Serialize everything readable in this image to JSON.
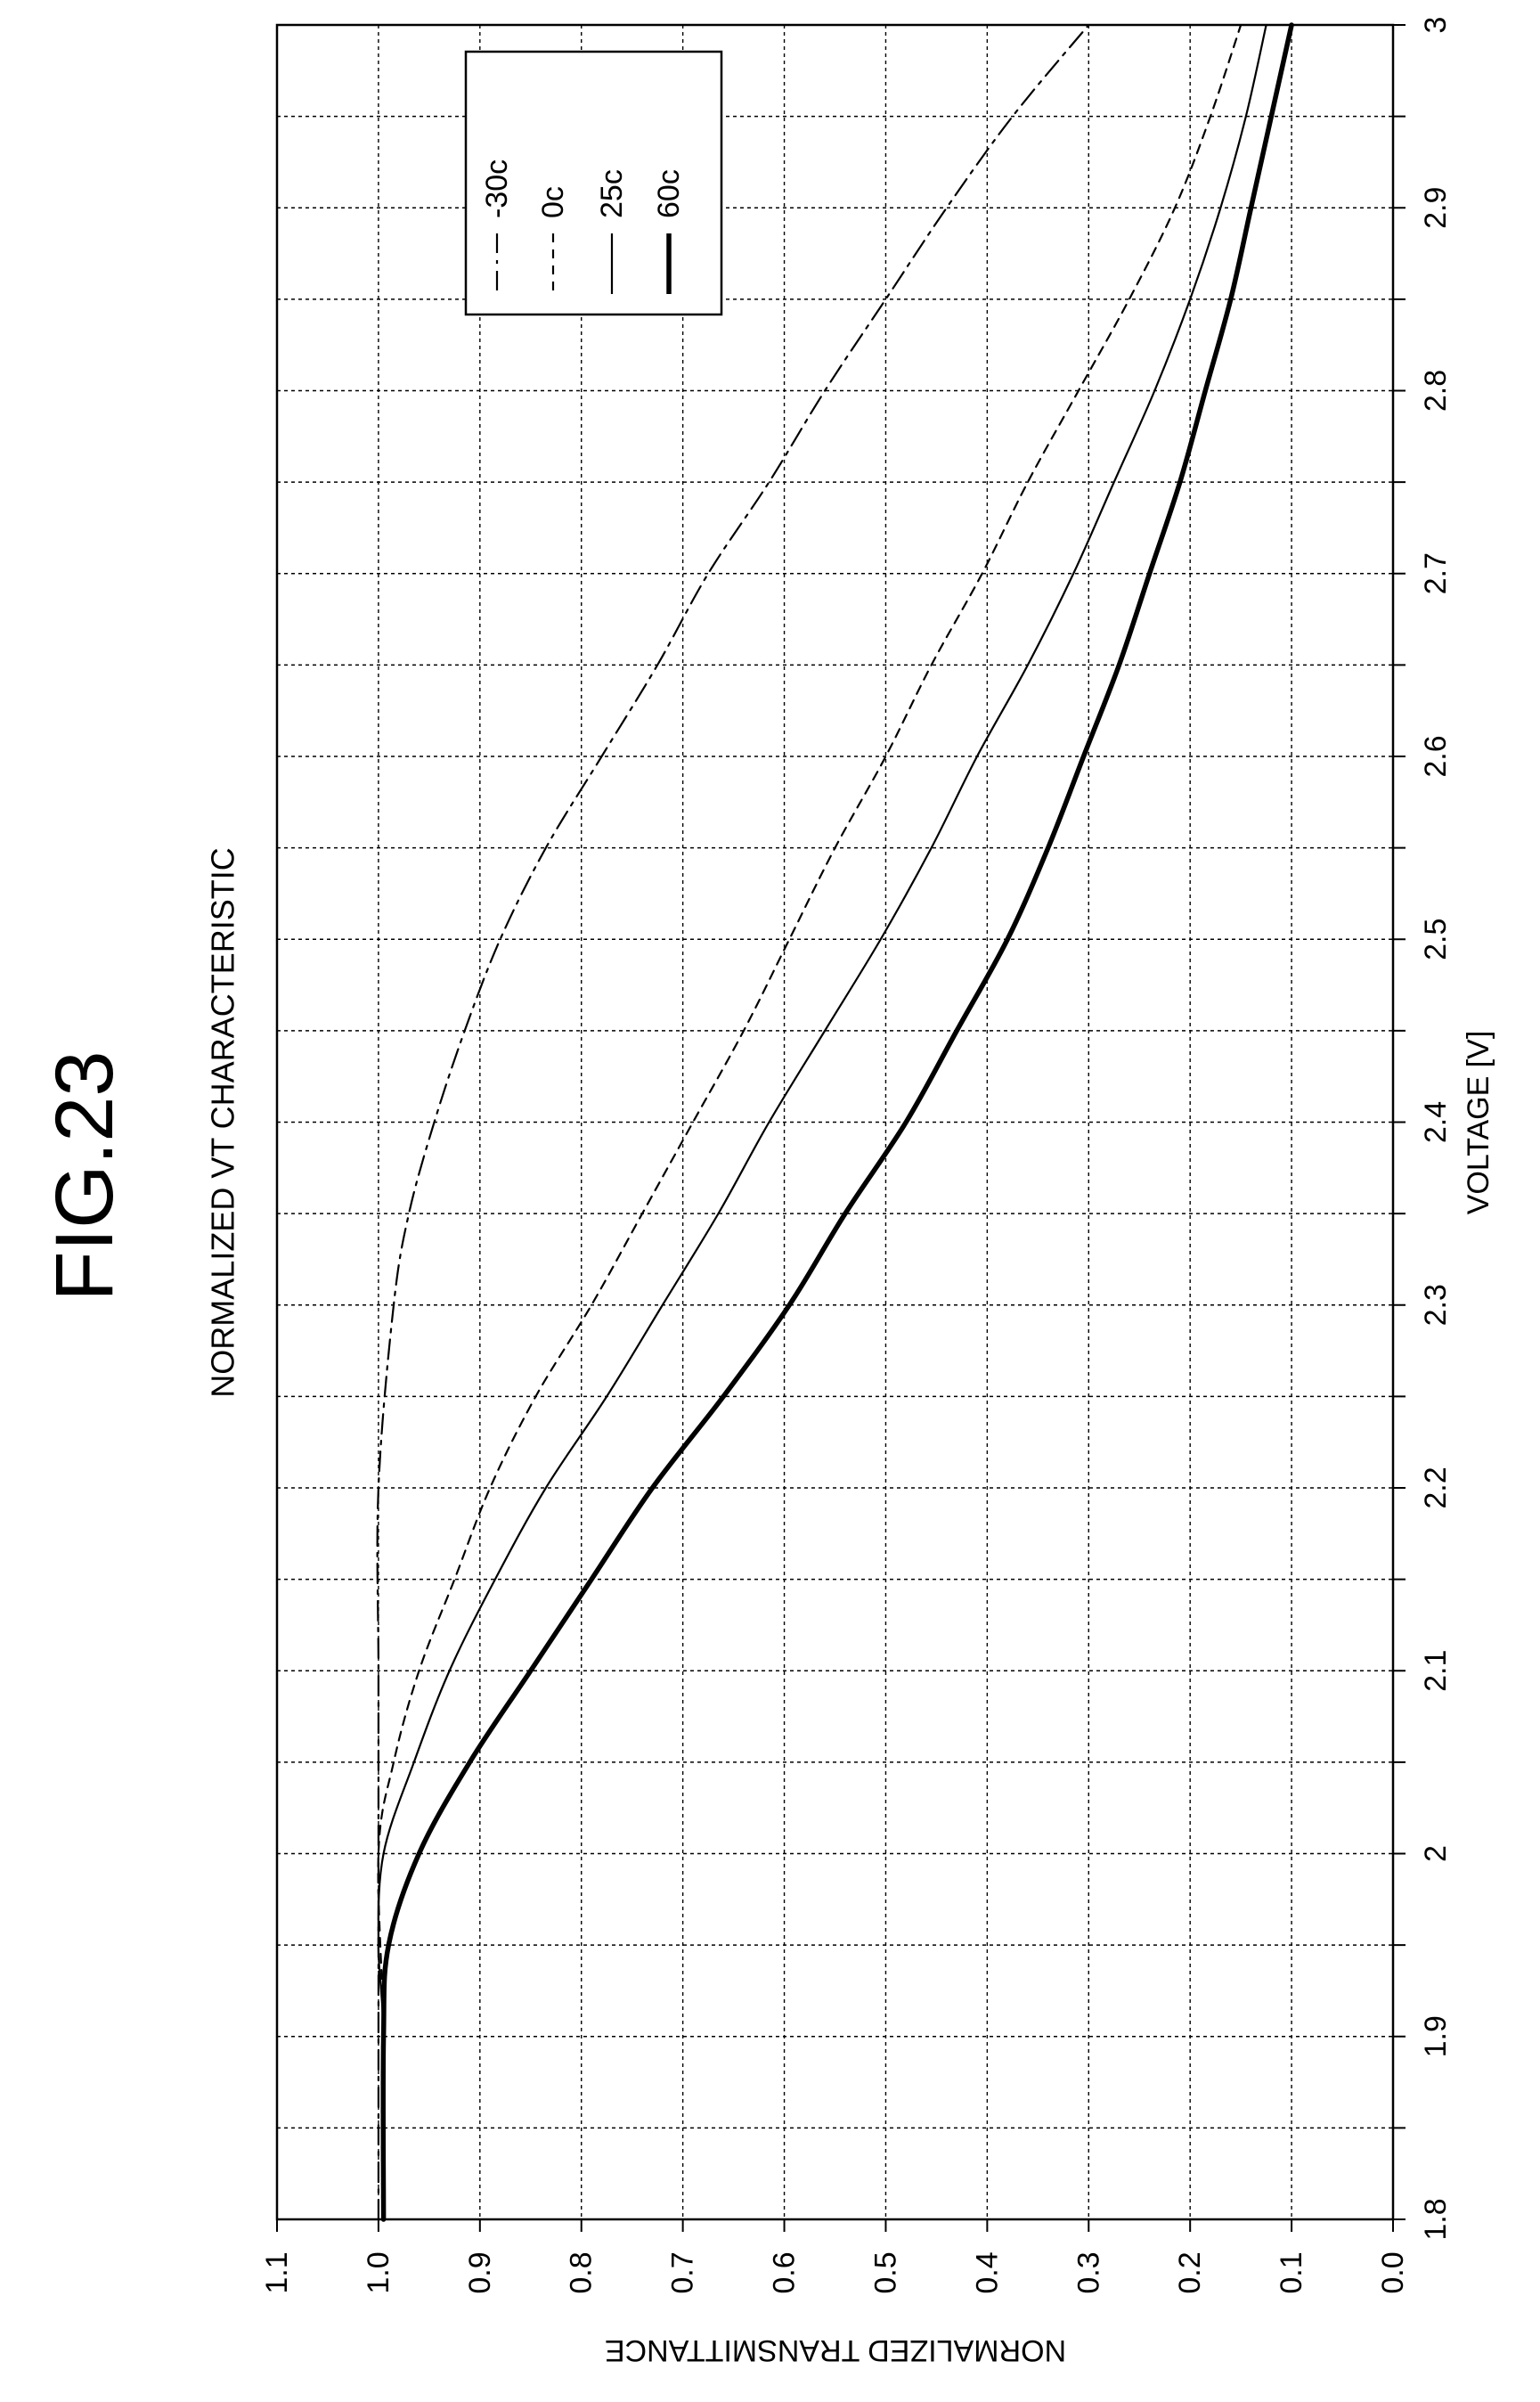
{
  "figure": {
    "title": "FIG.23"
  },
  "chart_data": {
    "type": "line",
    "title": "NORMALIZED VT CHARACTERISTIC",
    "xlabel": "VOLTAGE [V]",
    "ylabel": "NORMALIZED TRANSMITTANCE",
    "xlim": [
      1.8,
      3.0
    ],
    "ylim": [
      0.0,
      1.1
    ],
    "x_ticks": [
      "1.8",
      "1.9",
      "2",
      "2.1",
      "2.2",
      "2.3",
      "2.4",
      "2.5",
      "2.6",
      "2.7",
      "2.8",
      "2.9",
      "3"
    ],
    "y_ticks": [
      "0.0",
      "0.1",
      "0.2",
      "0.3",
      "0.4",
      "0.5",
      "0.6",
      "0.7",
      "0.8",
      "0.9",
      "1.0",
      "1.1"
    ],
    "grid": true,
    "legend_position": "top-right",
    "series": [
      {
        "name": "-30c",
        "style": "dash-dot",
        "x": [
          1.8,
          1.9,
          2.0,
          2.1,
          2.2,
          2.3,
          2.35,
          2.4,
          2.45,
          2.5,
          2.55,
          2.6,
          2.65,
          2.7,
          2.75,
          2.8,
          2.85,
          2.9,
          2.95,
          3.0
        ],
        "y": [
          1.0,
          1.0,
          1.0,
          1.0,
          1.0,
          0.985,
          0.97,
          0.945,
          0.915,
          0.88,
          0.835,
          0.78,
          0.725,
          0.675,
          0.615,
          0.56,
          0.5,
          0.44,
          0.375,
          0.3
        ]
      },
      {
        "name": "0c",
        "style": "dashed",
        "x": [
          1.8,
          1.9,
          2.0,
          2.05,
          2.1,
          2.15,
          2.2,
          2.25,
          2.3,
          2.35,
          2.4,
          2.45,
          2.5,
          2.55,
          2.6,
          2.65,
          2.7,
          2.75,
          2.8,
          2.85,
          2.9,
          2.95,
          3.0
        ],
        "y": [
          0.995,
          0.995,
          1.0,
          0.985,
          0.96,
          0.925,
          0.89,
          0.845,
          0.79,
          0.74,
          0.69,
          0.64,
          0.595,
          0.55,
          0.5,
          0.455,
          0.405,
          0.36,
          0.31,
          0.26,
          0.215,
          0.18,
          0.15
        ]
      },
      {
        "name": "25c",
        "style": "solid",
        "x": [
          1.8,
          1.9,
          1.95,
          2.0,
          2.05,
          2.1,
          2.15,
          2.2,
          2.25,
          2.3,
          2.35,
          2.4,
          2.45,
          2.5,
          2.55,
          2.6,
          2.65,
          2.7,
          2.75,
          2.8,
          2.85,
          2.9,
          2.95,
          3.0
        ],
        "y": [
          0.995,
          0.995,
          1.0,
          0.995,
          0.965,
          0.93,
          0.885,
          0.835,
          0.775,
          0.72,
          0.665,
          0.615,
          0.56,
          0.505,
          0.455,
          0.41,
          0.36,
          0.315,
          0.275,
          0.235,
          0.2,
          0.17,
          0.145,
          0.125
        ]
      },
      {
        "name": "60c",
        "style": "solid-thick",
        "x": [
          1.8,
          1.9,
          1.95,
          2.0,
          2.05,
          2.1,
          2.15,
          2.2,
          2.25,
          2.3,
          2.35,
          2.4,
          2.45,
          2.5,
          2.55,
          2.6,
          2.65,
          2.7,
          2.75,
          2.8,
          2.85,
          2.9,
          2.95,
          3.0
        ],
        "y": [
          0.995,
          0.995,
          0.99,
          0.96,
          0.91,
          0.85,
          0.79,
          0.73,
          0.66,
          0.595,
          0.54,
          0.48,
          0.43,
          0.38,
          0.34,
          0.305,
          0.27,
          0.24,
          0.21,
          0.185,
          0.16,
          0.14,
          0.12,
          0.1
        ]
      }
    ]
  }
}
